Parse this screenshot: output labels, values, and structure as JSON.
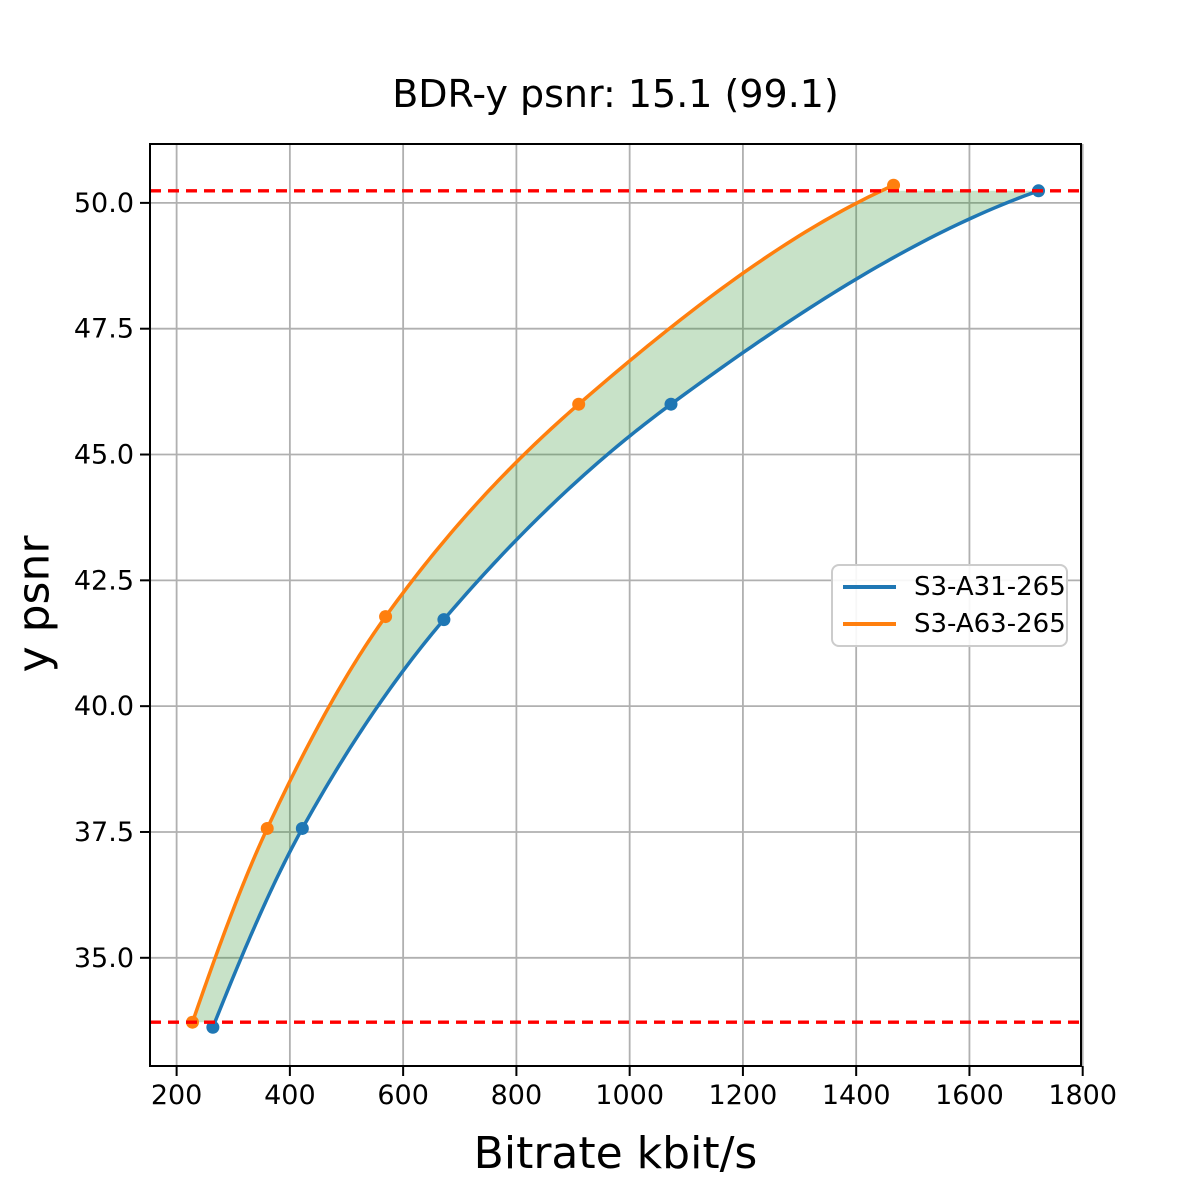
{
  "chart_data": {
    "type": "line",
    "title": "BDR-y psnr: 15.1 (99.1)",
    "xlabel": "Bitrate kbit/s",
    "ylabel": "y psnr",
    "xlim": [
      153,
      1797
    ],
    "ylim": [
      32.85,
      51.17
    ],
    "grid": true,
    "grid_color": "#b0b0b0",
    "spine_color": "#000000",
    "xticks": [
      200,
      400,
      600,
      800,
      1000,
      1200,
      1400,
      1600,
      1800
    ],
    "xtick_labels": [
      "200",
      "400",
      "600",
      "800",
      "1000",
      "1200",
      "1400",
      "1600",
      "1800"
    ],
    "yticks": [
      35.0,
      37.5,
      40.0,
      42.5,
      45.0,
      47.5,
      50.0
    ],
    "ytick_labels": [
      "35.0",
      "37.5",
      "40.0",
      "42.5",
      "45.0",
      "47.5",
      "50.0"
    ],
    "legend_position": "center right",
    "series": [
      {
        "name": "S3-A31-265",
        "color": "#1f77b4",
        "marker": "circle",
        "x": [
          264,
          422,
          672,
          1073,
          1722
        ],
        "y": [
          33.62,
          37.57,
          41.72,
          46.0,
          50.24
        ]
      },
      {
        "name": "S3-A63-265",
        "color": "#ff7f0e",
        "marker": "circle",
        "x": [
          228,
          360,
          569,
          910,
          1466
        ],
        "y": [
          33.72,
          37.57,
          41.78,
          46.0,
          50.35
        ]
      }
    ],
    "hlines": [
      {
        "y": 33.72,
        "color": "#ff0000",
        "style": "dashed"
      },
      {
        "y": 50.24,
        "color": "#ff0000",
        "style": "dashed"
      }
    ],
    "fill_between": {
      "lower_series": "S3-A63-265",
      "upper_series": "S3-A31-265",
      "y_min": 33.72,
      "y_max": 50.24,
      "color": "#228B22",
      "opacity": 0.25
    }
  }
}
